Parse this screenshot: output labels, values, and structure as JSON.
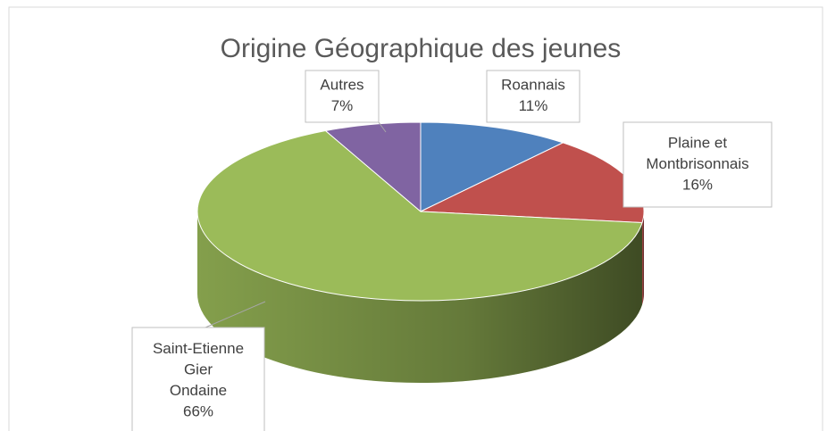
{
  "chart_data": {
    "type": "pie",
    "title": "Origine Géographique des jeunes",
    "categories": [
      [
        "Roannais"
      ],
      [
        "Plaine et",
        "Montbrisonnais"
      ],
      [
        "Saint-Etienne",
        "Gier",
        "Ondaine"
      ],
      [
        "Autres"
      ]
    ],
    "values": [
      11,
      16,
      66,
      7
    ],
    "value_labels": [
      "11%",
      "16%",
      "66%",
      "7%"
    ],
    "colors": [
      "#4f81bd",
      "#c0504d",
      "#9bbb59",
      "#8064a2"
    ]
  }
}
